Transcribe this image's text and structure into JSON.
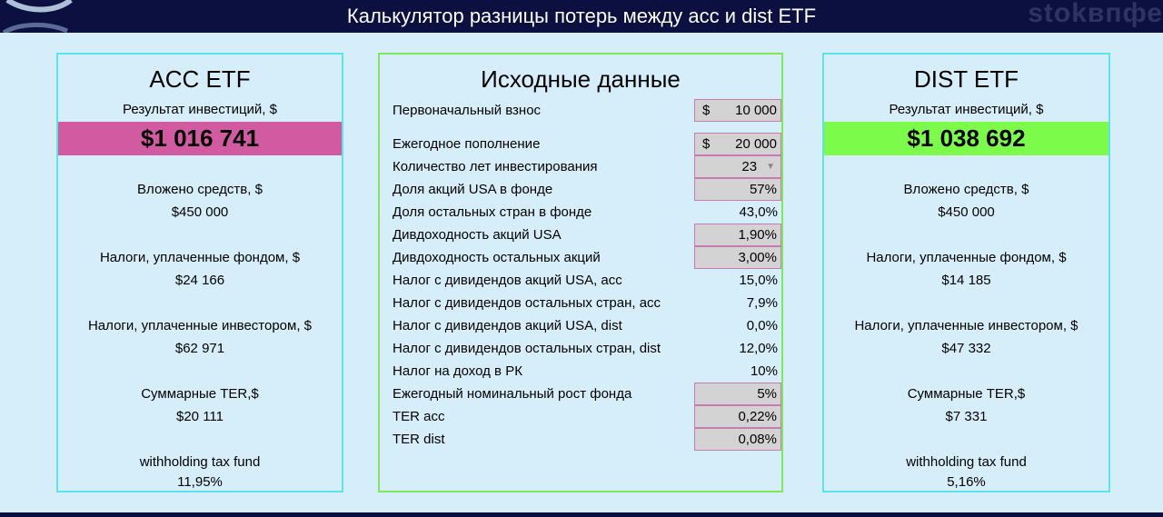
{
  "header": {
    "title": "Калькулятор разницы потерь между acc и dist ETF",
    "watermark": "stokвпфе"
  },
  "colors": {
    "acc_result": "#d15aa0",
    "dist_result": "#7dfb4b",
    "acc_border": "#5de3f0",
    "input_border": "#7ee85a"
  },
  "acc": {
    "title": "ACC ETF",
    "result_label": "Результат инвестиций, $",
    "result_value": "$1 016 741",
    "invested_label": "Вложено средств, $",
    "invested_value": "$450 000",
    "fund_tax_label": "Налоги, уплаченные фондом, $",
    "fund_tax_value": "$24 166",
    "investor_tax_label": "Налоги, уплаченные инвестором, $",
    "investor_tax_value": "$62 971",
    "ter_label": "Суммарные TER,$",
    "ter_value": "$20 111",
    "wht_label": "withholding  tax fund",
    "wht_value": "11,95%"
  },
  "dist": {
    "title": "DIST ETF",
    "result_label": "Результат инвестиций, $",
    "result_value": "$1 038 692",
    "invested_label": "Вложено средств, $",
    "invested_value": "$450 000",
    "fund_tax_label": "Налоги, уплаченные фондом, $",
    "fund_tax_value": "$14 185",
    "investor_tax_label": "Налоги, уплаченные инвестором, $",
    "investor_tax_value": "$47 332",
    "ter_label": "Суммарные TER,$",
    "ter_value": "$7 331",
    "wht_label": "withholding  tax fund",
    "wht_value": "5,16%"
  },
  "input": {
    "title": "Исходные данные",
    "rows": [
      {
        "label": "Первоначальный взнос",
        "currency": "$",
        "value": "10 000"
      },
      {
        "label": "Ежегодное пополнение",
        "currency": "$",
        "value": "20 000"
      },
      {
        "label": "Количество лет инвестирования",
        "value": "23"
      },
      {
        "label": "Доля акций USA в фонде",
        "value": "57%"
      },
      {
        "label": "Доля остальных стран в фонде",
        "value": "43,0%"
      },
      {
        "label": "Дивдоходность акций USA",
        "value": "1,90%"
      },
      {
        "label": "Дивдоходность остальных акций",
        "value": "3,00%"
      },
      {
        "label": "Налог с дивидендов акций USA, acc",
        "value": "15,0%"
      },
      {
        "label": "Налог с дивидендов остальных стран, acc",
        "value": "7,9%"
      },
      {
        "label": "Налог с дивидендов акций USA, dist",
        "value": "0,0%"
      },
      {
        "label": "Налог с дивидендов остальных стран, dist",
        "value": "12,0%"
      },
      {
        "label": "Налог на доход в РК",
        "value": "10%"
      },
      {
        "label": "Ежегодный номинальный рост фонда",
        "value": "5%"
      },
      {
        "label": "TER acc",
        "value": "0,22%"
      },
      {
        "label": "TER dist",
        "value": "0,08%"
      }
    ]
  }
}
